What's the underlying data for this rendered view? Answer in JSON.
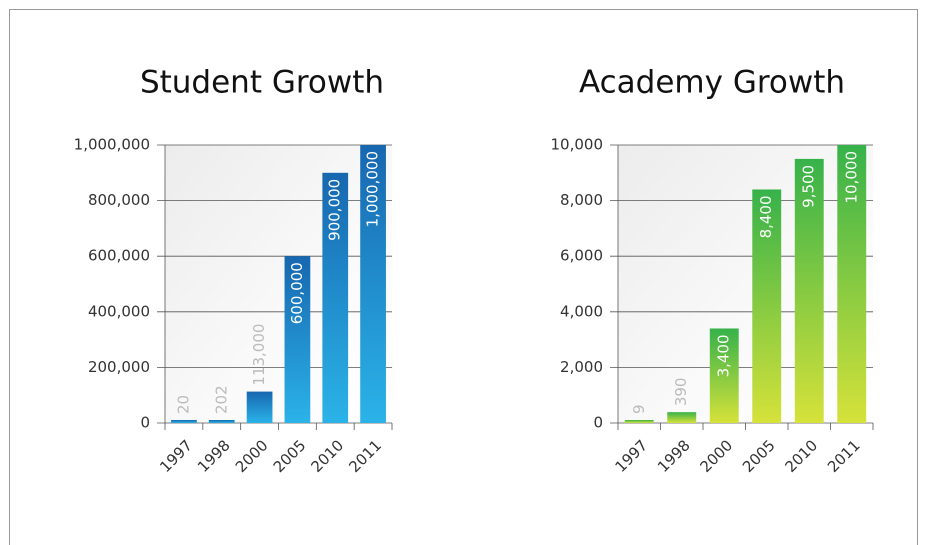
{
  "chart_data": [
    {
      "type": "bar",
      "title": "Student Growth",
      "categories": [
        "1997",
        "1998",
        "2000",
        "2005",
        "2010",
        "2011"
      ],
      "values": [
        20,
        202,
        113000,
        600000,
        900000,
        1000000
      ],
      "value_labels": [
        "20",
        "202",
        "113,000",
        "600,000",
        "900,000",
        "1,000,000"
      ],
      "colors": [
        "#1767b0",
        "#2bb3e8"
      ],
      "ylim": [
        0,
        1000000
      ],
      "yticks": [
        0,
        {
          "value": 200000,
          "label": "200,000"
        },
        {
          "value": 400000,
          "label": "400,000"
        },
        {
          "value": 600000,
          "label": "600,000"
        },
        {
          "value": 800000,
          "label": "800,000"
        },
        {
          "value": 1000000,
          "label": "1,000,000"
        }
      ],
      "grid": true
    },
    {
      "type": "bar",
      "title": "Academy Growth",
      "categories": [
        "1997",
        "1998",
        "2000",
        "2005",
        "2010",
        "2011"
      ],
      "values": [
        9,
        390,
        3400,
        8400,
        9500,
        10000
      ],
      "value_labels": [
        "9",
        "390",
        "3,400",
        "8,400",
        "9,500",
        "10,000"
      ],
      "colors": [
        "#36b24a",
        "#d6e23a"
      ],
      "ylim": [
        0,
        10000
      ],
      "yticks": [
        0,
        {
          "value": 2000,
          "label": "2,000"
        },
        {
          "value": 4000,
          "label": "4,000"
        },
        {
          "value": 6000,
          "label": "6,000"
        },
        {
          "value": 8000,
          "label": "8,000"
        },
        {
          "value": 10000,
          "label": "10,000"
        }
      ],
      "grid": true
    }
  ]
}
